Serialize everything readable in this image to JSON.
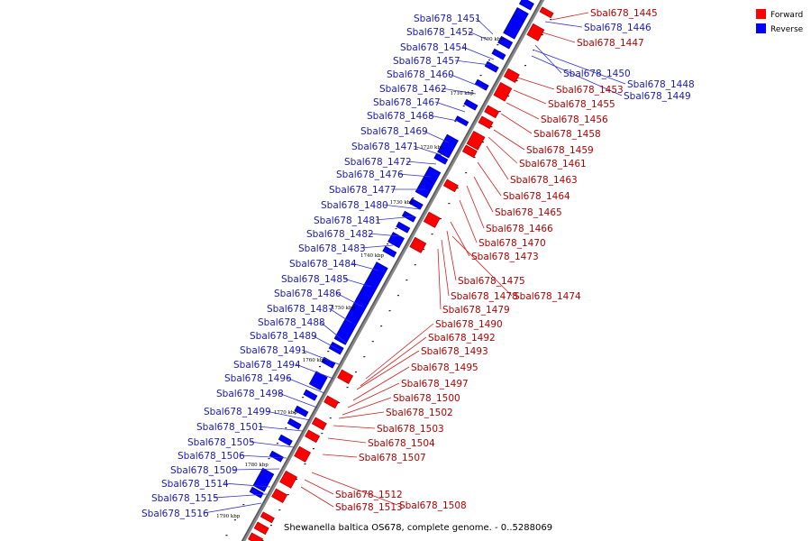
{
  "caption": "Shewanella baltica OS678, complete genome. - 0..5288069",
  "legend": [
    {
      "label": "Forward",
      "color": "#ff0000"
    },
    {
      "label": "Reverse",
      "color": "#0000ff"
    }
  ],
  "ticks": [
    "1700 kbp",
    "1710 kbp",
    "1720 kbp",
    "1730 kbp",
    "1740 kbp",
    "1750 kbp",
    "1760 kbp",
    "1770 kbp",
    "1780 kbp",
    "1790 kbp"
  ],
  "reverse_labels": [
    "Sbal678_1451",
    "Sbal678_1452",
    "Sbal678_1454",
    "Sbal678_1457",
    "Sbal678_1460",
    "Sbal678_1462",
    "Sbal678_1467",
    "Sbal678_1468",
    "Sbal678_1469",
    "Sbal678_1471",
    "Sbal678_1472",
    "Sbal678_1476",
    "Sbal678_1477",
    "Sbal678_1480",
    "Sbal678_1481",
    "Sbal678_1482",
    "Sbal678_1483",
    "Sbal678_1484",
    "Sbal678_1485",
    "Sbal678_1486",
    "Sbal678_1487",
    "Sbal678_1488",
    "Sbal678_1489",
    "Sbal678_1491",
    "Sbal678_1494",
    "Sbal678_1496",
    "Sbal678_1498",
    "Sbal678_1499",
    "Sbal678_1501",
    "Sbal678_1505",
    "Sbal678_1506",
    "Sbal678_1509",
    "Sbal678_1514",
    "Sbal678_1515",
    "Sbal678_1516"
  ],
  "reverse_right_labels": [
    "Sbal678_1446",
    "Sbal678_1450",
    "Sbal678_1448",
    "Sbal678_1449"
  ],
  "forward_labels": [
    "Sbal678_1445",
    "Sbal678_1447",
    "Sbal678_1453",
    "Sbal678_1455",
    "Sbal678_1456",
    "Sbal678_1458",
    "Sbal678_1459",
    "Sbal678_1461",
    "Sbal678_1463",
    "Sbal678_1464",
    "Sbal678_1465",
    "Sbal678_1466",
    "Sbal678_1470",
    "Sbal678_1473",
    "Sbal678_1475",
    "Sbal678_1478",
    "Sbal678_1474",
    "Sbal678_1479",
    "Sbal678_1490",
    "Sbal678_1492",
    "Sbal678_1493",
    "Sbal678_1495",
    "Sbal678_1497",
    "Sbal678_1500",
    "Sbal678_1502",
    "Sbal678_1503",
    "Sbal678_1504",
    "Sbal678_1507",
    "Sbal678_1512",
    "Sbal678_1513",
    "Sbal678_1508"
  ]
}
